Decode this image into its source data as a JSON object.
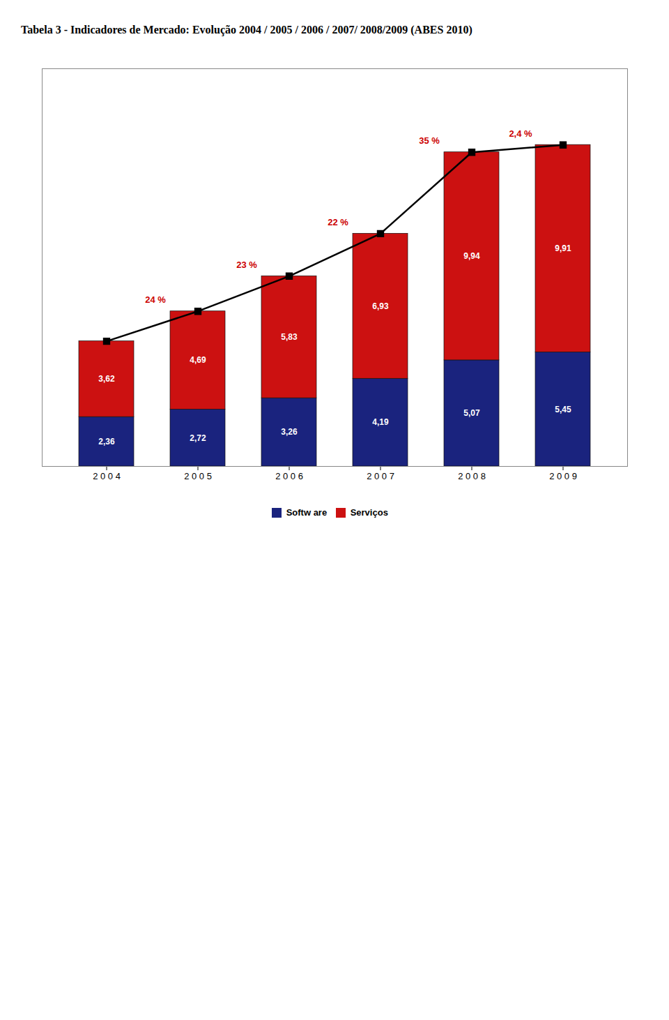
{
  "chart_data": {
    "type": "bar",
    "title": "Tabela 3 - Indicadores de Mercado: Evolução 2004 / 2005 / 2006 / 2007/ 2008/2009 (ABES 2010)",
    "categories": [
      "2 0 0 4",
      "2 0 0 5",
      "2 0 0 6",
      "2 0 0 7",
      "2 0 0 8",
      "2 0 0 9"
    ],
    "series": [
      {
        "name": "Softw are",
        "type": "bar",
        "color": "#1a237e",
        "values": [
          2.36,
          2.72,
          3.26,
          4.19,
          5.07,
          5.45
        ],
        "value_labels": [
          "2,36",
          "2,72",
          "3,26",
          "4,19",
          "5,07",
          "5,45"
        ]
      },
      {
        "name": "Serviços",
        "type": "bar",
        "color": "#cc1111",
        "values": [
          3.62,
          4.69,
          5.83,
          6.93,
          9.94,
          9.91
        ],
        "value_labels": [
          "3,62",
          "4,69",
          "5,83",
          "6,93",
          "9,94",
          "9,91"
        ]
      },
      {
        "type": "line",
        "color": "#000000",
        "marker": "square",
        "values": [
          5.98,
          7.41,
          9.09,
          11.12,
          15.01,
          15.36
        ]
      }
    ],
    "annotations": [
      {
        "text": "24 %",
        "color": "#cc0000"
      },
      {
        "text": "23 %",
        "color": "#cc0000"
      },
      {
        "text": "22 %",
        "color": "#cc0000"
      },
      {
        "text": "35 %",
        "color": "#cc0000"
      },
      {
        "text": "2,4 %",
        "color": "#cc0000"
      }
    ],
    "stacked": true,
    "data_labels": true,
    "ylim": [
      0,
      19
    ],
    "yticks": [],
    "tick_labels": "x",
    "legend": "bottom",
    "grid": false
  }
}
